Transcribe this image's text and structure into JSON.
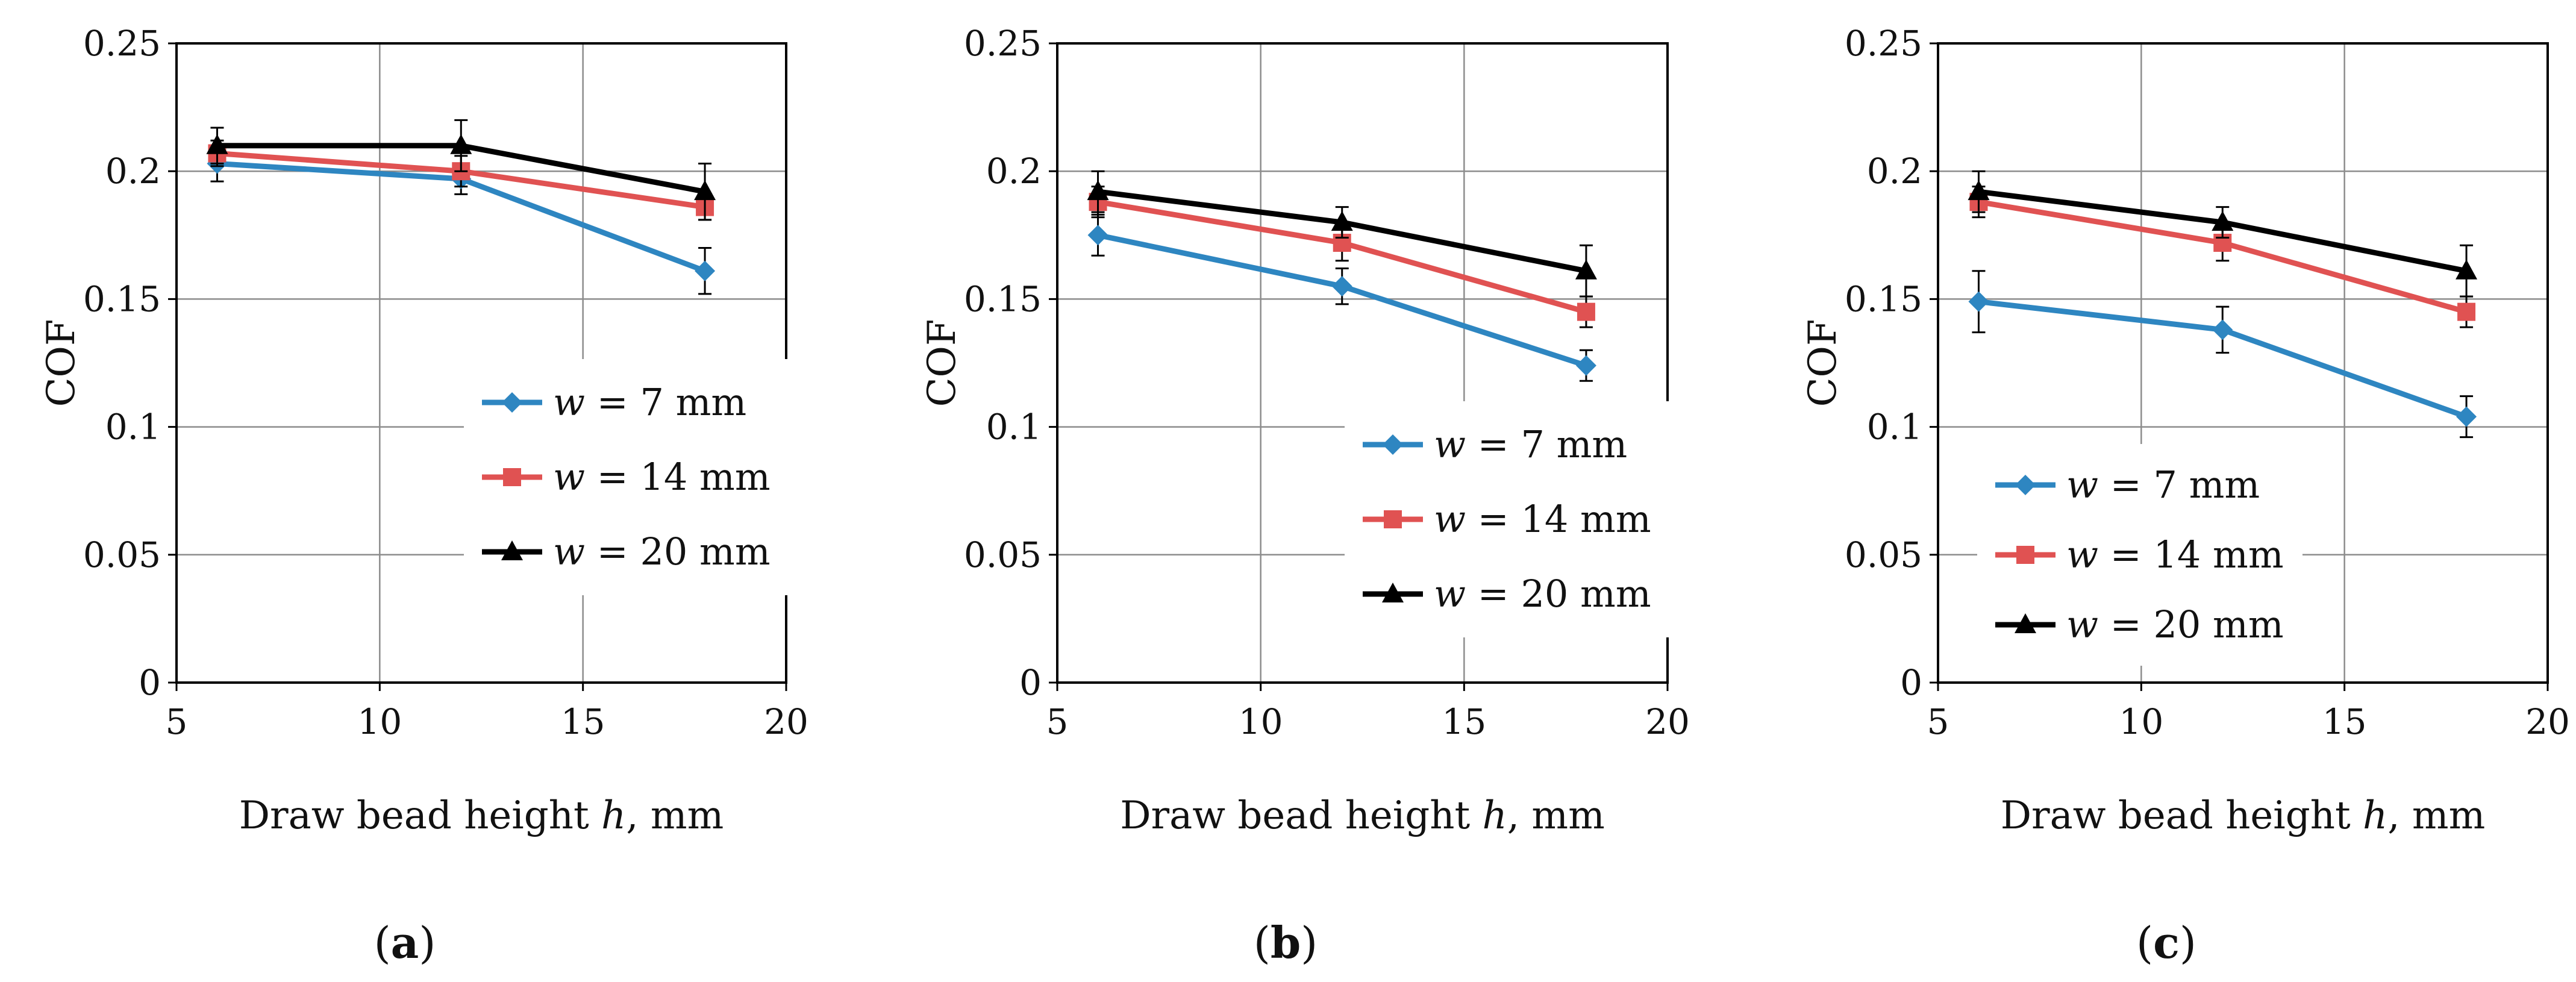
{
  "figure": {
    "panels": [
      "(a)",
      "(b)",
      "(c)"
    ]
  },
  "chart_data": [
    {
      "type": "line",
      "panel_label": "(a)",
      "xlabel": "Draw bead height h, mm",
      "xlabel_prefix": "Draw bead height ",
      "xlabel_var": "h",
      "xlabel_suffix": ", mm",
      "ylabel": "COF",
      "xlim": [
        5,
        20
      ],
      "ylim": [
        0,
        0.25
      ],
      "xticks": [
        5,
        10,
        15,
        20
      ],
      "yticks": [
        0,
        0.05,
        0.1,
        0.15,
        0.2,
        0.25
      ],
      "ytick_labels": [
        "0",
        "0.05",
        "0.1",
        "0.15",
        "0.2",
        "0.25"
      ],
      "grid": true,
      "legend_position": "right-middle",
      "x": [
        6,
        12,
        18
      ],
      "series": [
        {
          "name": "w = 7 mm",
          "var": "w",
          "label_rest": " = 7 mm",
          "color": "#2e86c1",
          "marker": "diamond",
          "values": [
            0.203,
            0.197,
            0.161
          ],
          "errors": [
            0.007,
            0.006,
            0.009
          ]
        },
        {
          "name": "w = 14 mm",
          "var": "w",
          "label_rest": " = 14 mm",
          "color": "#e05252",
          "marker": "square",
          "values": [
            0.207,
            0.2,
            0.186
          ],
          "errors": [
            0.005,
            0.006,
            0.005
          ]
        },
        {
          "name": "w = 20 mm",
          "var": "w",
          "label_rest": " = 20 mm",
          "color": "#000000",
          "marker": "triangle",
          "values": [
            0.21,
            0.21,
            0.192
          ],
          "errors": [
            0.007,
            0.01,
            0.011
          ]
        }
      ]
    },
    {
      "type": "line",
      "panel_label": "(b)",
      "xlabel": "Draw bead height h, mm",
      "xlabel_prefix": "Draw bead height ",
      "xlabel_var": "h",
      "xlabel_suffix": ", mm",
      "ylabel": "COF",
      "xlim": [
        5,
        20
      ],
      "ylim": [
        0,
        0.25
      ],
      "xticks": [
        5,
        10,
        15,
        20
      ],
      "yticks": [
        0,
        0.05,
        0.1,
        0.15,
        0.2,
        0.25
      ],
      "ytick_labels": [
        "0",
        "0.05",
        "0.1",
        "0.15",
        "0.2",
        "0.25"
      ],
      "grid": true,
      "legend_position": "right-middle",
      "x": [
        6,
        12,
        18
      ],
      "series": [
        {
          "name": "w = 7 mm",
          "var": "w",
          "label_rest": " = 7 mm",
          "color": "#2e86c1",
          "marker": "diamond",
          "values": [
            0.175,
            0.155,
            0.124
          ],
          "errors": [
            0.008,
            0.007,
            0.006
          ]
        },
        {
          "name": "w = 14 mm",
          "var": "w",
          "label_rest": " = 14 mm",
          "color": "#e05252",
          "marker": "square",
          "values": [
            0.188,
            0.172,
            0.145
          ],
          "errors": [
            0.006,
            0.007,
            0.006
          ]
        },
        {
          "name": "w = 20 mm",
          "var": "w",
          "label_rest": " = 20 mm",
          "color": "#000000",
          "marker": "triangle",
          "values": [
            0.192,
            0.18,
            0.161
          ],
          "errors": [
            0.008,
            0.006,
            0.01
          ]
        }
      ]
    },
    {
      "type": "line",
      "panel_label": "(c)",
      "xlabel": "Draw bead height h, mm",
      "xlabel_prefix": "Draw bead height ",
      "xlabel_var": "h",
      "xlabel_suffix": ", mm",
      "ylabel": "COF",
      "xlim": [
        5,
        20
      ],
      "ylim": [
        0,
        0.25
      ],
      "xticks": [
        5,
        10,
        15,
        20
      ],
      "yticks": [
        0,
        0.05,
        0.1,
        0.15,
        0.2,
        0.25
      ],
      "ytick_labels": [
        "0",
        "0.05",
        "0.1",
        "0.15",
        "0.2",
        "0.25"
      ],
      "grid": true,
      "legend_position": "bottom-left",
      "x": [
        6,
        12,
        18
      ],
      "series": [
        {
          "name": "w = 7 mm",
          "var": "w",
          "label_rest": " = 7 mm",
          "color": "#2e86c1",
          "marker": "diamond",
          "values": [
            0.149,
            0.138,
            0.104
          ],
          "errors": [
            0.012,
            0.009,
            0.008
          ]
        },
        {
          "name": "w = 14 mm",
          "var": "w",
          "label_rest": " = 14 mm",
          "color": "#e05252",
          "marker": "square",
          "values": [
            0.188,
            0.172,
            0.145
          ],
          "errors": [
            0.006,
            0.007,
            0.006
          ]
        },
        {
          "name": "w = 20 mm",
          "var": "w",
          "label_rest": " = 20 mm",
          "color": "#000000",
          "marker": "triangle",
          "values": [
            0.192,
            0.18,
            0.161
          ],
          "errors": [
            0.008,
            0.006,
            0.01
          ]
        }
      ]
    }
  ]
}
